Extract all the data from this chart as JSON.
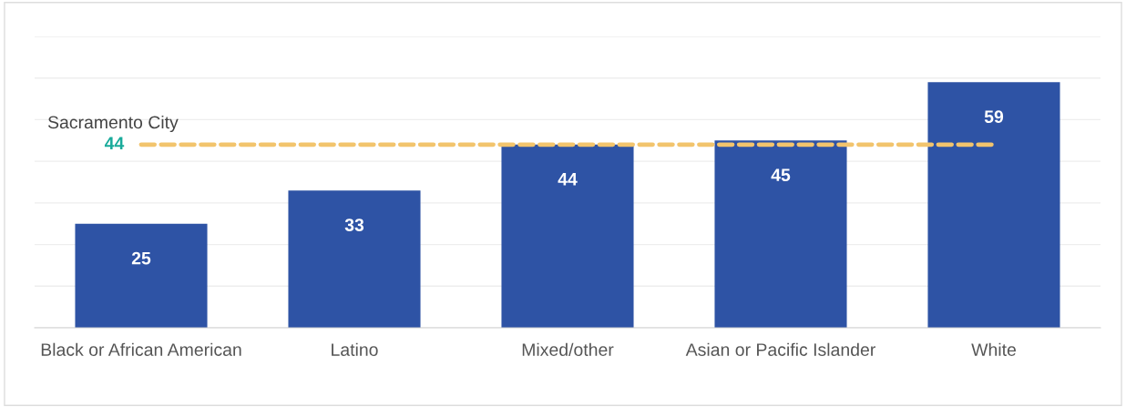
{
  "chart_data": {
    "type": "bar",
    "categories": [
      "Black or African American",
      "Latino",
      "Mixed/other",
      "Asian or Pacific Islander",
      "White"
    ],
    "values": [
      25,
      33,
      44,
      45,
      59
    ],
    "color": "#2e53a5",
    "data_labels": true,
    "ylim": [
      0,
      70
    ],
    "yticks": [
      {
        "value": 0,
        "label": null
      },
      {
        "value": 10,
        "label": null
      },
      {
        "value": 20,
        "label": null
      },
      {
        "value": 30,
        "label": null
      },
      {
        "value": 40,
        "label": null
      },
      {
        "value": 50,
        "label": null
      },
      {
        "value": 60,
        "label": null
      },
      {
        "value": 70,
        "label": null
      }
    ],
    "tick_labels": "x",
    "grid": "y",
    "annotations": [
      "44"
    ],
    "ref_lines": [
      {
        "axis": "y",
        "value": 44,
        "label": "Sacramento City",
        "color": "#f2c46d",
        "line_style": "dashed"
      }
    ]
  }
}
